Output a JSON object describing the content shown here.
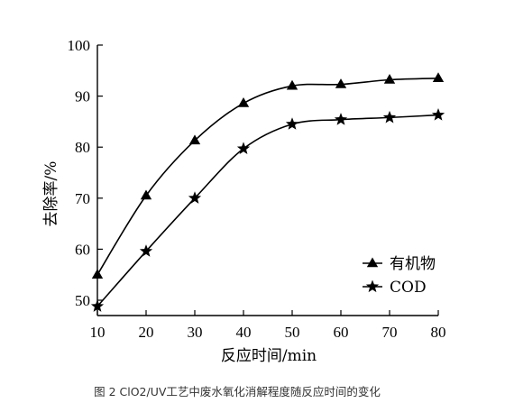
{
  "chart_data": {
    "type": "line",
    "x": [
      10,
      20,
      30,
      40,
      50,
      60,
      70,
      80
    ],
    "x_ticks": [
      10,
      20,
      30,
      40,
      50,
      60,
      70,
      80
    ],
    "y_ticks": [
      50,
      60,
      70,
      80,
      90,
      100
    ],
    "xlim": [
      10,
      80
    ],
    "ylim": [
      47,
      100
    ],
    "xlabel": "反应时间/min",
    "ylabel": "去除率/%",
    "grid": false,
    "legend_placement": "lower-right",
    "series": [
      {
        "name": "有机物",
        "marker": "triangle",
        "values": [
          55.0,
          70.5,
          81.3,
          88.6,
          92.0,
          92.3,
          93.2,
          93.5
        ]
      },
      {
        "name": "COD",
        "marker": "star",
        "values": [
          48.8,
          59.6,
          70.0,
          79.7,
          84.5,
          85.4,
          85.8,
          86.3
        ]
      }
    ],
    "caption": "图 2 ClO2/UV工艺中废水氧化消解程度随反应时间的变化"
  }
}
